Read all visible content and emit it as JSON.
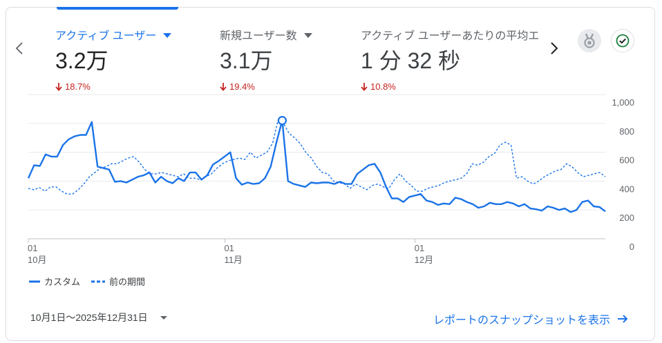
{
  "metrics": [
    {
      "label": "アクティブ ユーザー",
      "value": "3.2万",
      "change": "18.7%",
      "active": true
    },
    {
      "label": "新規ユーザー数",
      "value": "3.1万",
      "change": "19.4%",
      "active": false
    },
    {
      "label": "アクティブ ユーザーあたりの平均エ",
      "value": "1 分 32 秒",
      "change": "10.8%",
      "active": false
    }
  ],
  "icons": {
    "prev": "chevron-left-icon",
    "next": "chevron-right-icon",
    "medal": "medal-icon",
    "check": "check-circle-icon",
    "down": "arrow-down-icon",
    "forward": "arrow-forward-icon"
  },
  "colors": {
    "accent": "#1a73e8",
    "negative": "#c5221f"
  },
  "chart_data": {
    "type": "line",
    "x_range": [
      "2025-10-01",
      "2025-12-31"
    ],
    "x_ticks": [
      {
        "day": "01",
        "month": "10月"
      },
      {
        "day": "01",
        "month": "11月"
      },
      {
        "day": "01",
        "month": "12月"
      }
    ],
    "y_ticks": [
      "1,000",
      "800",
      "600",
      "400",
      "200",
      "0"
    ],
    "ylim": [
      0,
      1000
    ],
    "grid": true,
    "legend_position": "bottom-left",
    "series": [
      {
        "name": "カスタム",
        "style": "solid",
        "values": [
          420,
          510,
          505,
          585,
          570,
          570,
          650,
          690,
          710,
          720,
          720,
          810,
          500,
          490,
          480,
          395,
          400,
          390,
          410,
          430,
          440,
          460,
          390,
          430,
          400,
          385,
          420,
          400,
          460,
          460,
          410,
          440,
          515,
          540,
          570,
          600,
          420,
          375,
          390,
          380,
          385,
          420,
          500,
          670,
          820,
          400,
          380,
          370,
          360,
          390,
          385,
          390,
          390,
          380,
          395,
          380,
          380,
          450,
          480,
          510,
          520,
          460,
          360,
          280,
          280,
          255,
          290,
          300,
          310,
          265,
          255,
          235,
          245,
          240,
          285,
          275,
          255,
          240,
          215,
          225,
          250,
          240,
          240,
          255,
          245,
          225,
          240,
          210,
          205,
          195,
          225,
          215,
          200,
          210,
          185,
          200,
          255,
          265,
          225,
          220,
          190
        ]
      },
      {
        "name": "前の期間",
        "style": "dashed",
        "values": [
          350,
          340,
          355,
          330,
          360,
          360,
          330,
          310,
          310,
          340,
          380,
          430,
          460,
          490,
          500,
          520,
          520,
          540,
          560,
          570,
          530,
          480,
          450,
          450,
          460,
          450,
          440,
          430,
          450,
          420,
          420,
          410,
          430,
          450,
          490,
          520,
          540,
          550,
          560,
          550,
          600,
          560,
          580,
          600,
          660,
          820,
          800,
          730,
          700,
          660,
          600,
          560,
          500,
          460,
          450,
          400,
          390,
          380,
          350,
          380,
          360,
          340,
          370,
          380,
          360,
          350,
          410,
          450,
          400,
          370,
          330,
          330,
          350,
          360,
          370,
          390,
          400,
          410,
          420,
          450,
          520,
          510,
          530,
          570,
          590,
          650,
          670,
          650,
          420,
          430,
          400,
          380,
          400,
          430,
          450,
          470,
          480,
          520,
          500,
          460,
          430,
          440,
          450,
          460,
          430
        ]
      }
    ],
    "highlight_index": 44
  },
  "legend": {
    "series1": "カスタム",
    "series2": "前の期間"
  },
  "footer": {
    "date_range": "10月1日～2025年12月31日",
    "report_link": "レポートのスナップショットを表示"
  }
}
